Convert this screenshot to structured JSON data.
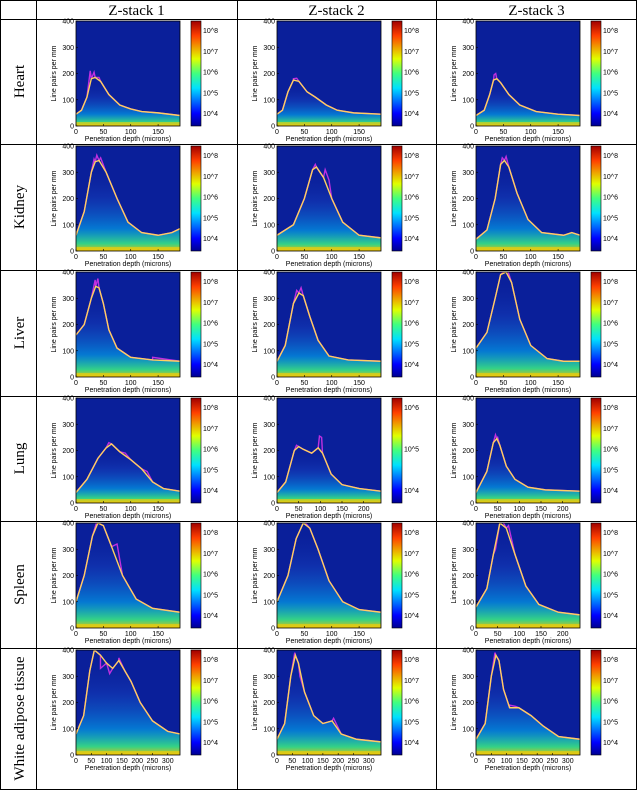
{
  "columns": [
    "Z-stack 1",
    "Z-stack 2",
    "Z-stack 3"
  ],
  "rows": [
    "Heart",
    "Kidney",
    "Liver",
    "Lung",
    "Spleen",
    "White adipose tissue"
  ],
  "axis": {
    "xlabel": "Penetration depth (microns)",
    "ylabel": "Line pairs per mm",
    "yticks": [
      "0",
      "100",
      "200",
      "300",
      "400"
    ]
  },
  "colorbar": {
    "full": [
      "10^8",
      "10^7",
      "10^6",
      "10^5",
      "10^4"
    ],
    "short": [
      "10^6",
      "10^5",
      "10^4"
    ]
  },
  "colors": {
    "curve_raw": "#c030e0",
    "curve_smooth": "#ffd060",
    "background": "#0a1f9a"
  },
  "chart_data": [
    {
      "type": "heatmap",
      "row": "Heart",
      "col": "Z-stack 1",
      "xticks": [
        0,
        50,
        100,
        150
      ],
      "xlim": [
        0,
        190
      ],
      "ylim": [
        0,
        400
      ],
      "colorbar": "full",
      "line": [
        [
          0,
          45
        ],
        [
          10,
          60
        ],
        [
          20,
          110
        ],
        [
          28,
          180
        ],
        [
          35,
          185
        ],
        [
          45,
          170
        ],
        [
          60,
          120
        ],
        [
          80,
          80
        ],
        [
          100,
          65
        ],
        [
          120,
          55
        ],
        [
          150,
          50
        ],
        [
          190,
          40
        ]
      ],
      "raw_peak": [
        [
          26,
          210
        ],
        [
          33,
          205
        ],
        [
          42,
          185
        ]
      ]
    },
    {
      "type": "heatmap",
      "row": "Heart",
      "col": "Z-stack 2",
      "xticks": [
        0,
        50,
        100,
        150
      ],
      "xlim": [
        0,
        190
      ],
      "ylim": [
        0,
        400
      ],
      "colorbar": "full",
      "line": [
        [
          0,
          45
        ],
        [
          10,
          60
        ],
        [
          20,
          130
        ],
        [
          30,
          175
        ],
        [
          40,
          170
        ],
        [
          55,
          130
        ],
        [
          70,
          110
        ],
        [
          90,
          80
        ],
        [
          110,
          60
        ],
        [
          140,
          50
        ],
        [
          190,
          45
        ]
      ],
      "raw_peak": [
        [
          30,
          180
        ],
        [
          36,
          182
        ],
        [
          70,
          110
        ]
      ]
    },
    {
      "type": "heatmap",
      "row": "Heart",
      "col": "Z-stack 3",
      "xticks": [
        0,
        50,
        100,
        150
      ],
      "xlim": [
        0,
        190
      ],
      "ylim": [
        0,
        400
      ],
      "colorbar": "full",
      "line": [
        [
          0,
          40
        ],
        [
          15,
          60
        ],
        [
          25,
          120
        ],
        [
          32,
          175
        ],
        [
          38,
          180
        ],
        [
          45,
          165
        ],
        [
          60,
          120
        ],
        [
          80,
          80
        ],
        [
          110,
          55
        ],
        [
          150,
          45
        ],
        [
          190,
          40
        ]
      ],
      "raw_peak": [
        [
          33,
          195
        ],
        [
          36,
          200
        ]
      ]
    },
    {
      "type": "heatmap",
      "row": "Kidney",
      "col": "Z-stack 1",
      "xticks": [
        0,
        50,
        100,
        150
      ],
      "xlim": [
        0,
        190
      ],
      "ylim": [
        0,
        400
      ],
      "colorbar": "full",
      "line": [
        [
          0,
          60
        ],
        [
          15,
          150
        ],
        [
          28,
          300
        ],
        [
          35,
          340
        ],
        [
          42,
          345
        ],
        [
          55,
          300
        ],
        [
          75,
          200
        ],
        [
          95,
          110
        ],
        [
          120,
          70
        ],
        [
          150,
          60
        ],
        [
          175,
          70
        ],
        [
          190,
          85
        ]
      ],
      "raw_peak": [
        [
          33,
          350
        ],
        [
          38,
          365
        ],
        [
          45,
          355
        ]
      ]
    },
    {
      "type": "heatmap",
      "row": "Kidney",
      "col": "Z-stack 2",
      "xticks": [
        0,
        50,
        100,
        150
      ],
      "xlim": [
        0,
        190
      ],
      "ylim": [
        0,
        400
      ],
      "colorbar": "full",
      "line": [
        [
          0,
          60
        ],
        [
          30,
          100
        ],
        [
          50,
          200
        ],
        [
          65,
          310
        ],
        [
          72,
          320
        ],
        [
          85,
          280
        ],
        [
          100,
          200
        ],
        [
          120,
          110
        ],
        [
          150,
          60
        ],
        [
          190,
          50
        ]
      ],
      "raw_peak": [
        [
          70,
          330
        ],
        [
          88,
          310
        ],
        [
          95,
          270
        ]
      ]
    },
    {
      "type": "heatmap",
      "row": "Kidney",
      "col": "Z-stack 3",
      "xticks": [
        0,
        50,
        100,
        150
      ],
      "xlim": [
        0,
        190
      ],
      "ylim": [
        0,
        400
      ],
      "colorbar": "full",
      "line": [
        [
          0,
          45
        ],
        [
          20,
          80
        ],
        [
          35,
          200
        ],
        [
          45,
          330
        ],
        [
          52,
          345
        ],
        [
          60,
          320
        ],
        [
          75,
          220
        ],
        [
          95,
          120
        ],
        [
          120,
          70
        ],
        [
          160,
          60
        ],
        [
          175,
          70
        ],
        [
          190,
          60
        ]
      ],
      "raw_peak": [
        [
          48,
          355
        ],
        [
          55,
          360
        ]
      ]
    },
    {
      "type": "heatmap",
      "row": "Liver",
      "col": "Z-stack 1",
      "xticks": [
        0,
        50,
        100,
        150
      ],
      "xlim": [
        0,
        190
      ],
      "ylim": [
        0,
        400
      ],
      "colorbar": "full",
      "line": [
        [
          0,
          160
        ],
        [
          15,
          200
        ],
        [
          28,
          300
        ],
        [
          36,
          345
        ],
        [
          42,
          340
        ],
        [
          50,
          280
        ],
        [
          60,
          180
        ],
        [
          75,
          110
        ],
        [
          100,
          75
        ],
        [
          140,
          65
        ],
        [
          190,
          60
        ]
      ],
      "raw_peak": [
        [
          35,
          370
        ],
        [
          40,
          375
        ],
        [
          140,
          75
        ]
      ]
    },
    {
      "type": "heatmap",
      "row": "Liver",
      "col": "Z-stack 2",
      "xticks": [
        0,
        50,
        100,
        150
      ],
      "xlim": [
        0,
        190
      ],
      "ylim": [
        0,
        400
      ],
      "colorbar": "full",
      "line": [
        [
          0,
          60
        ],
        [
          15,
          120
        ],
        [
          30,
          280
        ],
        [
          40,
          320
        ],
        [
          48,
          310
        ],
        [
          60,
          230
        ],
        [
          75,
          140
        ],
        [
          95,
          80
        ],
        [
          130,
          65
        ],
        [
          190,
          60
        ]
      ],
      "raw_peak": [
        [
          36,
          330
        ],
        [
          44,
          340
        ]
      ]
    },
    {
      "type": "heatmap",
      "row": "Liver",
      "col": "Z-stack 3",
      "xticks": [
        0,
        50,
        100,
        150
      ],
      "xlim": [
        0,
        190
      ],
      "ylim": [
        0,
        400
      ],
      "colorbar": "full",
      "line": [
        [
          0,
          110
        ],
        [
          20,
          170
        ],
        [
          35,
          300
        ],
        [
          45,
          390
        ],
        [
          55,
          400
        ],
        [
          65,
          360
        ],
        [
          80,
          220
        ],
        [
          100,
          120
        ],
        [
          130,
          70
        ],
        [
          160,
          60
        ],
        [
          190,
          60
        ]
      ],
      "raw_peak": [
        [
          50,
          400
        ],
        [
          58,
          405
        ]
      ]
    },
    {
      "type": "heatmap",
      "row": "Lung",
      "col": "Z-stack 1",
      "xticks": [
        0,
        50,
        100,
        150
      ],
      "xlim": [
        0,
        190
      ],
      "ylim": [
        0,
        400
      ],
      "colorbar": "full",
      "line": [
        [
          0,
          40
        ],
        [
          20,
          90
        ],
        [
          40,
          170
        ],
        [
          55,
          210
        ],
        [
          65,
          225
        ],
        [
          80,
          195
        ],
        [
          100,
          165
        ],
        [
          120,
          130
        ],
        [
          140,
          80
        ],
        [
          160,
          55
        ],
        [
          190,
          45
        ]
      ],
      "raw_peak": [
        [
          60,
          230
        ],
        [
          90,
          190
        ],
        [
          130,
          120
        ]
      ]
    },
    {
      "type": "heatmap",
      "row": "Lung",
      "col": "Z-stack 2",
      "xticks": [
        0,
        50,
        100,
        150,
        200
      ],
      "xlim": [
        0,
        240
      ],
      "ylim": [
        0,
        400
      ],
      "colorbar": "short",
      "line": [
        [
          0,
          40
        ],
        [
          20,
          80
        ],
        [
          40,
          200
        ],
        [
          50,
          215
        ],
        [
          60,
          205
        ],
        [
          80,
          190
        ],
        [
          95,
          210
        ],
        [
          105,
          190
        ],
        [
          125,
          110
        ],
        [
          150,
          70
        ],
        [
          190,
          55
        ],
        [
          240,
          45
        ]
      ],
      "raw_peak": [
        [
          45,
          220
        ],
        [
          98,
          255
        ],
        [
          103,
          250
        ]
      ]
    },
    {
      "type": "heatmap",
      "row": "Lung",
      "col": "Z-stack 3",
      "xticks": [
        0,
        50,
        100,
        150,
        200
      ],
      "xlim": [
        0,
        240
      ],
      "ylim": [
        0,
        400
      ],
      "colorbar": "full",
      "line": [
        [
          0,
          40
        ],
        [
          25,
          120
        ],
        [
          40,
          230
        ],
        [
          48,
          245
        ],
        [
          55,
          220
        ],
        [
          70,
          140
        ],
        [
          90,
          90
        ],
        [
          120,
          60
        ],
        [
          160,
          50
        ],
        [
          240,
          45
        ]
      ],
      "raw_peak": [
        [
          45,
          260
        ],
        [
          50,
          250
        ]
      ]
    },
    {
      "type": "heatmap",
      "row": "Spleen",
      "col": "Z-stack 1",
      "xticks": [
        0,
        50,
        100,
        150
      ],
      "xlim": [
        0,
        190
      ],
      "ylim": [
        0,
        400
      ],
      "colorbar": "full",
      "line": [
        [
          0,
          100
        ],
        [
          15,
          200
        ],
        [
          30,
          350
        ],
        [
          40,
          400
        ],
        [
          50,
          390
        ],
        [
          65,
          310
        ],
        [
          85,
          200
        ],
        [
          110,
          110
        ],
        [
          140,
          75
        ],
        [
          190,
          60
        ]
      ],
      "raw_peak": [
        [
          38,
          405
        ],
        [
          75,
          320
        ]
      ]
    },
    {
      "type": "heatmap",
      "row": "Spleen",
      "col": "Z-stack 2",
      "xticks": [
        0,
        50,
        100,
        150
      ],
      "xlim": [
        0,
        190
      ],
      "ylim": [
        0,
        400
      ],
      "colorbar": "full",
      "line": [
        [
          0,
          100
        ],
        [
          20,
          200
        ],
        [
          35,
          340
        ],
        [
          48,
          400
        ],
        [
          60,
          380
        ],
        [
          75,
          300
        ],
        [
          95,
          180
        ],
        [
          120,
          100
        ],
        [
          150,
          70
        ],
        [
          190,
          60
        ]
      ],
      "raw_peak": [
        [
          50,
          405
        ]
      ]
    },
    {
      "type": "heatmap",
      "row": "Spleen",
      "col": "Z-stack 3",
      "xticks": [
        0,
        50,
        100,
        150,
        200
      ],
      "xlim": [
        0,
        240
      ],
      "ylim": [
        0,
        400
      ],
      "colorbar": "full",
      "line": [
        [
          0,
          80
        ],
        [
          25,
          150
        ],
        [
          40,
          280
        ],
        [
          55,
          400
        ],
        [
          70,
          380
        ],
        [
          90,
          280
        ],
        [
          115,
          160
        ],
        [
          145,
          90
        ],
        [
          190,
          60
        ],
        [
          240,
          50
        ]
      ],
      "raw_peak": [
        [
          45,
          300
        ],
        [
          60,
          410
        ],
        [
          75,
          390
        ]
      ]
    },
    {
      "type": "heatmap",
      "row": "White adipose tissue",
      "col": "Z-stack 1",
      "xticks": [
        0,
        50,
        100,
        150,
        200,
        250,
        300
      ],
      "xlim": [
        0,
        340
      ],
      "ylim": [
        0,
        400
      ],
      "colorbar": "full",
      "line": [
        [
          0,
          80
        ],
        [
          25,
          150
        ],
        [
          45,
          320
        ],
        [
          60,
          400
        ],
        [
          80,
          380
        ],
        [
          100,
          350
        ],
        [
          120,
          330
        ],
        [
          140,
          360
        ],
        [
          160,
          320
        ],
        [
          180,
          280
        ],
        [
          210,
          200
        ],
        [
          250,
          130
        ],
        [
          300,
          90
        ],
        [
          340,
          80
        ]
      ],
      "raw_peak": [
        [
          80,
          330
        ],
        [
          110,
          310
        ],
        [
          140,
          370
        ]
      ]
    },
    {
      "type": "heatmap",
      "row": "White adipose tissue",
      "col": "Z-stack 2",
      "xticks": [
        0,
        50,
        100,
        150,
        200,
        250,
        300
      ],
      "xlim": [
        0,
        340
      ],
      "ylim": [
        0,
        400
      ],
      "colorbar": "full",
      "line": [
        [
          0,
          60
        ],
        [
          25,
          120
        ],
        [
          45,
          300
        ],
        [
          60,
          380
        ],
        [
          70,
          350
        ],
        [
          90,
          240
        ],
        [
          120,
          150
        ],
        [
          150,
          120
        ],
        [
          180,
          130
        ],
        [
          210,
          80
        ],
        [
          260,
          60
        ],
        [
          340,
          50
        ]
      ],
      "raw_peak": [
        [
          58,
          390
        ],
        [
          75,
          300
        ],
        [
          185,
          140
        ]
      ]
    },
    {
      "type": "heatmap",
      "row": "White adipose tissue",
      "col": "Z-stack 3",
      "xticks": [
        0,
        50,
        100,
        150,
        200,
        250,
        300
      ],
      "xlim": [
        0,
        340
      ],
      "ylim": [
        0,
        400
      ],
      "colorbar": "full",
      "line": [
        [
          0,
          60
        ],
        [
          30,
          120
        ],
        [
          50,
          300
        ],
        [
          65,
          380
        ],
        [
          75,
          360
        ],
        [
          90,
          250
        ],
        [
          110,
          180
        ],
        [
          140,
          180
        ],
        [
          180,
          150
        ],
        [
          220,
          110
        ],
        [
          270,
          70
        ],
        [
          340,
          60
        ]
      ],
      "raw_peak": [
        [
          62,
          390
        ],
        [
          110,
          190
        ],
        [
          130,
          185
        ]
      ]
    }
  ]
}
